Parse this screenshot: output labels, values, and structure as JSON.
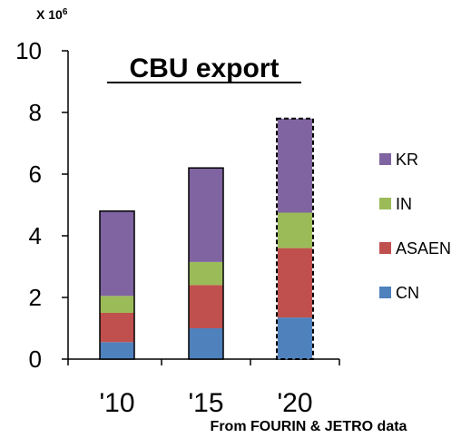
{
  "chart_data": {
    "type": "bar",
    "stacked": true,
    "title": "CBU export",
    "unit_label_base": "X 10",
    "unit_label_exp": "6",
    "source": "From FOURIN & JETRO data",
    "categories": [
      "'10",
      "'15",
      "'20"
    ],
    "ylim": [
      0,
      10
    ],
    "yticks": [
      0,
      2,
      4,
      6,
      8,
      10
    ],
    "grid": false,
    "legend_position": "right",
    "projected_category": "'20",
    "series": [
      {
        "name": "CN",
        "color": "#4F81BD",
        "values": [
          0.55,
          1.0,
          1.35
        ]
      },
      {
        "name": "ASAEN",
        "color": "#C0504D",
        "values": [
          0.95,
          1.4,
          2.25
        ]
      },
      {
        "name": "IN",
        "color": "#9BBB59",
        "values": [
          0.55,
          0.75,
          1.15
        ]
      },
      {
        "name": "KR",
        "color": "#8064A2",
        "values": [
          2.75,
          3.05,
          3.05
        ]
      }
    ]
  }
}
